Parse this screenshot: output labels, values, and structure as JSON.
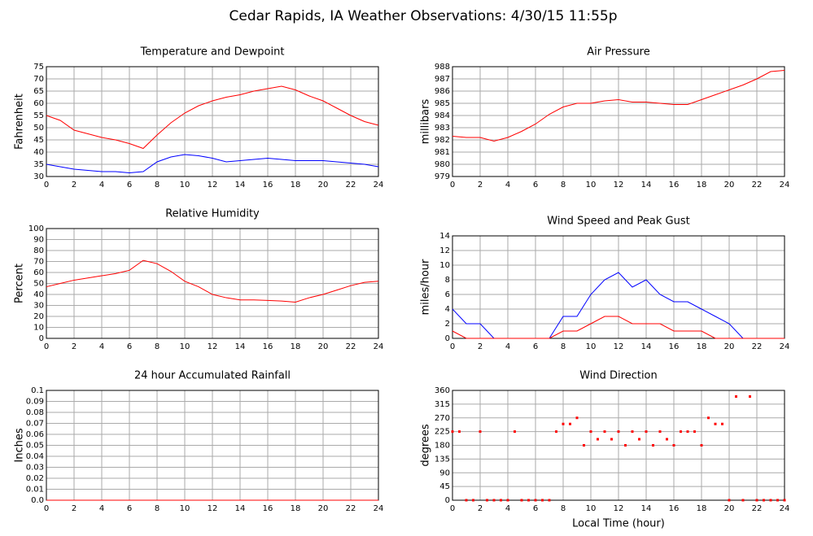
{
  "title": "Cedar Rapids, IA Weather Observations: 4/30/15 11:55p",
  "chart_data": [
    {
      "type": "line",
      "title": "Temperature and Dewpoint",
      "ylabel": "Fahrenheit",
      "x": [
        0,
        1,
        2,
        3,
        4,
        5,
        6,
        7,
        8,
        9,
        10,
        11,
        12,
        13,
        14,
        15,
        16,
        17,
        18,
        19,
        20,
        21,
        22,
        23,
        24
      ],
      "series": [
        {
          "name": "Temperature",
          "color": "#ff0000",
          "values": [
            55,
            53,
            49,
            47.5,
            46,
            45,
            43.5,
            41.5,
            47,
            52,
            56,
            59,
            61,
            62.5,
            63.5,
            65,
            66,
            67,
            65.5,
            63,
            61,
            58,
            55,
            52.5,
            51
          ]
        },
        {
          "name": "Dewpoint",
          "color": "#0000ff",
          "values": [
            35,
            34,
            33,
            32.5,
            32,
            32,
            31.5,
            32,
            36,
            38,
            39,
            38.5,
            37.5,
            36,
            36.5,
            37,
            37.5,
            37,
            36.5,
            36.5,
            36.5,
            36,
            35.5,
            35,
            34
          ]
        }
      ],
      "xlim": [
        0,
        24
      ],
      "ylim": [
        30,
        75
      ],
      "xticks": [
        0,
        2,
        4,
        6,
        8,
        10,
        12,
        14,
        16,
        18,
        20,
        22,
        24
      ],
      "yticks": [
        30,
        35,
        40,
        45,
        50,
        55,
        60,
        65,
        70,
        75
      ],
      "grid": true
    },
    {
      "type": "line",
      "title": "Air Pressure",
      "ylabel": "millibars",
      "x": [
        0,
        1,
        2,
        3,
        4,
        5,
        6,
        7,
        8,
        9,
        10,
        11,
        12,
        13,
        14,
        15,
        16,
        17,
        18,
        19,
        20,
        21,
        22,
        23,
        24
      ],
      "series": [
        {
          "name": "Pressure",
          "color": "#ff0000",
          "values": [
            982.3,
            982.2,
            982.2,
            981.9,
            982.2,
            982.7,
            983.3,
            984.1,
            984.7,
            985.0,
            985.0,
            985.2,
            985.3,
            985.1,
            985.1,
            985.0,
            984.9,
            984.9,
            985.3,
            985.7,
            986.1,
            986.5,
            987.0,
            987.6,
            987.7
          ]
        }
      ],
      "xlim": [
        0,
        24
      ],
      "ylim": [
        979,
        988
      ],
      "xticks": [
        0,
        2,
        4,
        6,
        8,
        10,
        12,
        14,
        16,
        18,
        20,
        22,
        24
      ],
      "yticks": [
        979,
        980,
        981,
        982,
        983,
        984,
        985,
        986,
        987,
        988
      ],
      "grid": true
    },
    {
      "type": "line",
      "title": "Relative Humidity",
      "ylabel": "Percent",
      "x": [
        0,
        1,
        2,
        3,
        4,
        5,
        6,
        7,
        8,
        9,
        10,
        11,
        12,
        13,
        14,
        15,
        16,
        17,
        18,
        19,
        20,
        21,
        22,
        23,
        24
      ],
      "series": [
        {
          "name": "Humidity",
          "color": "#ff0000",
          "values": [
            47,
            50,
            53,
            55,
            57,
            59,
            62,
            71,
            68,
            61,
            52,
            47,
            40,
            37,
            35,
            35,
            34.5,
            34,
            33,
            37,
            40,
            44,
            48,
            51,
            52
          ]
        }
      ],
      "xlim": [
        0,
        24
      ],
      "ylim": [
        0,
        100
      ],
      "xticks": [
        0,
        2,
        4,
        6,
        8,
        10,
        12,
        14,
        16,
        18,
        20,
        22,
        24
      ],
      "yticks": [
        0,
        10,
        20,
        30,
        40,
        50,
        60,
        70,
        80,
        90,
        100
      ],
      "grid": true
    },
    {
      "type": "line",
      "title": "Wind Speed and Peak Gust",
      "ylabel": "miles/hour",
      "x": [
        0,
        1,
        2,
        3,
        4,
        5,
        6,
        7,
        8,
        9,
        10,
        11,
        12,
        13,
        14,
        15,
        16,
        17,
        18,
        19,
        20,
        21,
        22,
        23,
        24
      ],
      "series": [
        {
          "name": "Peak Gust",
          "color": "#0000ff",
          "values": [
            4,
            2,
            2,
            0,
            0,
            0,
            0,
            0,
            3,
            3,
            6,
            8,
            9,
            7,
            8,
            6,
            5,
            5,
            4,
            3,
            2,
            0,
            0,
            0,
            0
          ]
        },
        {
          "name": "Wind Speed",
          "color": "#ff0000",
          "values": [
            1,
            0,
            0,
            0,
            0,
            0,
            0,
            0,
            1,
            1,
            2,
            3,
            3,
            2,
            2,
            2,
            1,
            1,
            1,
            0,
            0,
            0,
            0,
            0,
            0
          ]
        }
      ],
      "xlim": [
        0,
        24
      ],
      "ylim": [
        0,
        14
      ],
      "xticks": [
        0,
        2,
        4,
        6,
        8,
        10,
        12,
        14,
        16,
        18,
        20,
        22,
        24
      ],
      "yticks": [
        0,
        2,
        4,
        6,
        8,
        10,
        12,
        14
      ],
      "grid": true
    },
    {
      "type": "line",
      "title": "24 hour Accumulated Rainfall",
      "ylabel": "Inches",
      "x": [
        0,
        1,
        2,
        3,
        4,
        5,
        6,
        7,
        8,
        9,
        10,
        11,
        12,
        13,
        14,
        15,
        16,
        17,
        18,
        19,
        20,
        21,
        22,
        23,
        24
      ],
      "series": [
        {
          "name": "Rainfall",
          "color": "#ff0000",
          "values": [
            0,
            0,
            0,
            0,
            0,
            0,
            0,
            0,
            0,
            0,
            0,
            0,
            0,
            0,
            0,
            0,
            0,
            0,
            0,
            0,
            0,
            0,
            0,
            0,
            0
          ]
        }
      ],
      "xlim": [
        0,
        24
      ],
      "ylim": [
        0,
        0.1
      ],
      "xticks": [
        0,
        2,
        4,
        6,
        8,
        10,
        12,
        14,
        16,
        18,
        20,
        22,
        24
      ],
      "yticks": [
        {
          "value": 0,
          "label": "0.0"
        },
        0.01,
        0.02,
        0.03,
        0.04,
        0.05,
        0.06,
        0.07,
        0.08,
        0.09,
        0.1
      ],
      "grid": true
    },
    {
      "type": "scatter",
      "title": "Wind Direction",
      "ylabel": "degrees",
      "xlabel": "Local Time (hour)",
      "x": [
        0,
        0.5,
        1,
        1.5,
        2,
        2.5,
        3,
        3.5,
        4,
        4.5,
        5,
        5.5,
        6,
        6.5,
        7,
        7.5,
        8,
        8.5,
        9,
        9.5,
        10,
        10.5,
        11,
        11.5,
        12,
        12.5,
        13,
        13.5,
        14,
        14.5,
        15,
        15.5,
        16,
        16.5,
        17,
        17.5,
        18,
        18.5,
        19,
        19.5,
        20,
        20.5,
        21,
        21.5,
        22,
        22.5,
        23,
        23.5,
        24
      ],
      "series": [
        {
          "name": "Direction",
          "color": "#ff0000",
          "values": [
            225,
            225,
            0,
            0,
            225,
            0,
            0,
            0,
            0,
            225,
            0,
            0,
            0,
            0,
            0,
            225,
            250,
            250,
            270,
            180,
            225,
            200,
            225,
            200,
            225,
            180,
            225,
            200,
            225,
            180,
            225,
            200,
            180,
            225,
            225,
            225,
            180,
            270,
            250,
            250,
            0,
            340,
            0,
            340,
            0,
            0,
            0,
            0,
            0
          ]
        }
      ],
      "xlim": [
        0,
        24
      ],
      "ylim": [
        0,
        360
      ],
      "xticks": [
        0,
        2,
        4,
        6,
        8,
        10,
        12,
        14,
        16,
        18,
        20,
        22,
        24
      ],
      "yticks": [
        0,
        45,
        90,
        135,
        180,
        225,
        270,
        315,
        360
      ],
      "grid": true
    }
  ]
}
